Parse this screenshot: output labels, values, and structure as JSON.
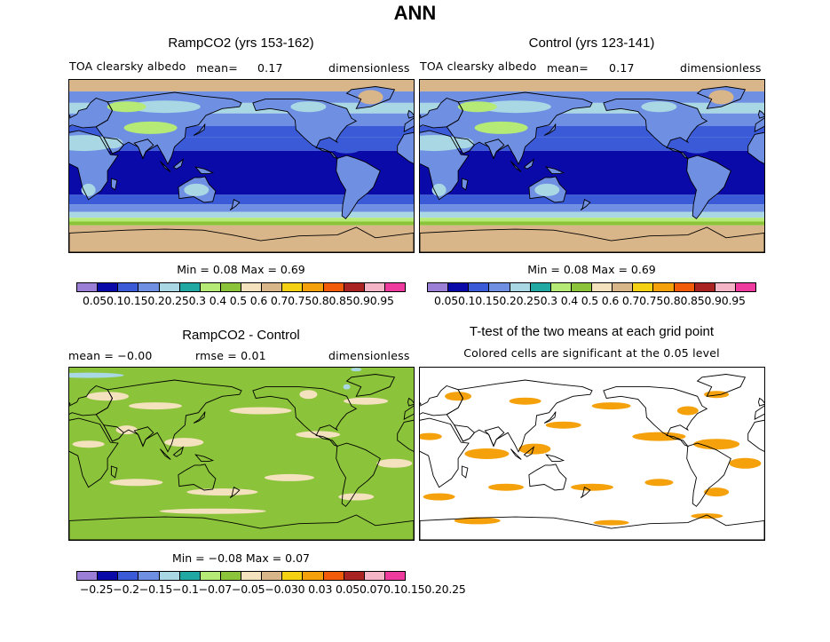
{
  "title": "ANN",
  "colors": {
    "albedo": [
      "#9b7fd6",
      "#0a0aa8",
      "#3a5ad8",
      "#6f8fe3",
      "#a9d8e4",
      "#22a8a3",
      "#b6ea76",
      "#8bc33a",
      "#f4e2bf",
      "#d9b68a",
      "#f4d213",
      "#f4a10c",
      "#f25b0a",
      "#a92323",
      "#f4b6c6",
      "#ef3a9e"
    ],
    "diff": [
      "#9b7fd6",
      "#0a0aa8",
      "#3a5ad8",
      "#6f8fe3",
      "#a9d8e4",
      "#22a8a3",
      "#b6ea76",
      "#8bc33a",
      "#f4e2bf",
      "#d9b68a",
      "#f4d213",
      "#f4a10c",
      "#f25b0a",
      "#a92323",
      "#f4b6c6",
      "#ef3a9e"
    ],
    "significant": "#f4a10c"
  },
  "panels": {
    "ramp": {
      "title": "RampCO2 (yrs 153-162)",
      "variable": "TOA clearsky albedo",
      "mean_label": "mean=",
      "mean_value": "0.17",
      "units": "dimensionless",
      "min_max": "Min =   0.08  Max =    0.69",
      "colorbar_ticks": "0.050.10.150.20.250.3 0.4 0.5 0.6 0.70.750.80.850.90.95"
    },
    "control": {
      "title": "Control (yrs 123-141)",
      "variable": "TOA clearsky albedo",
      "mean_label": "mean=",
      "mean_value": "0.17",
      "units": "dimensionless",
      "min_max": "Min =   0.08  Max =    0.69",
      "colorbar_ticks": "0.050.10.150.20.250.3 0.4 0.5 0.6 0.70.750.80.850.90.95"
    },
    "difference": {
      "title": "RampCO2 - Control",
      "mean_text": "mean =   −0.00",
      "rmse_text": "rmse =    0.01",
      "units": "dimensionless",
      "min_max": "Min =   −0.08  Max =    0.07",
      "colorbar_ticks": "−0.25−0.2−0.15−0.1−0.07−0.05−0.030 0.03 0.050.070.10.150.20.25"
    },
    "ttest": {
      "title": "T-test of the two means at each grid point",
      "subtitle": "Colored cells are significant at the 0.05 level"
    }
  }
}
